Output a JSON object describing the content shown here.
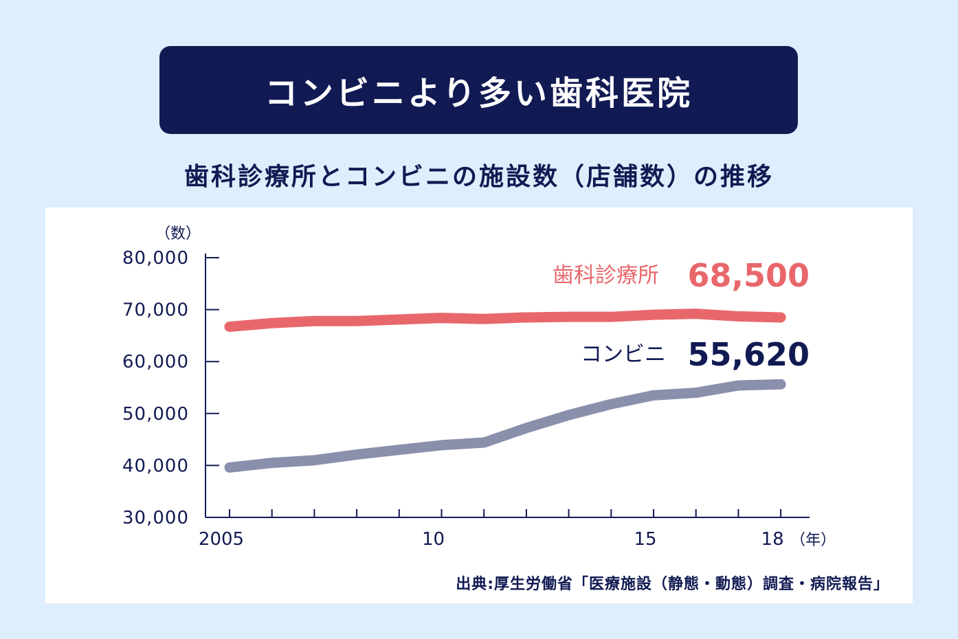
{
  "banner": {
    "title": "コンビニより多い歯科医院"
  },
  "subtitle": "歯科診療所とコンビニの施設数（店舗数）の推移",
  "source": "出典:厚生労働省「医療施設（静態・動態）調査・病院報告」",
  "colors": {
    "navy": "#111a52",
    "dental": "#e8676b",
    "conbini": "#8a8fac",
    "bg": "#dfeefc"
  },
  "chart_data": {
    "type": "line",
    "ylabel": "（数）",
    "xunit": "（年）",
    "ylim": [
      30000,
      80000
    ],
    "y_ticks": [
      30000,
      40000,
      50000,
      60000,
      70000,
      80000
    ],
    "y_tick_labels": [
      "30,000",
      "40,000",
      "50,000",
      "60,000",
      "70,000",
      "80,000"
    ],
    "x": [
      2005,
      2006,
      2007,
      2008,
      2009,
      2010,
      2011,
      2012,
      2013,
      2014,
      2015,
      2016,
      2017,
      2018
    ],
    "x_tick_labels": [
      {
        "year": 2005,
        "label": "2005"
      },
      {
        "year": 2010,
        "label": "10"
      },
      {
        "year": 2015,
        "label": "15"
      },
      {
        "year": 2018,
        "label": "18"
      }
    ],
    "series": [
      {
        "name": "歯科診療所",
        "value_label": "68,500",
        "color": "#e8676b",
        "values": [
          66700,
          67400,
          67800,
          67800,
          68100,
          68400,
          68200,
          68500,
          68600,
          68600,
          69000,
          69200,
          68700,
          68500
        ]
      },
      {
        "name": "コンビニ",
        "value_label": "55,620",
        "color": "#8a8fac",
        "values": [
          39600,
          40500,
          41000,
          42100,
          43000,
          43900,
          44400,
          47200,
          49700,
          51800,
          53500,
          54000,
          55400,
          55620
        ]
      }
    ]
  }
}
